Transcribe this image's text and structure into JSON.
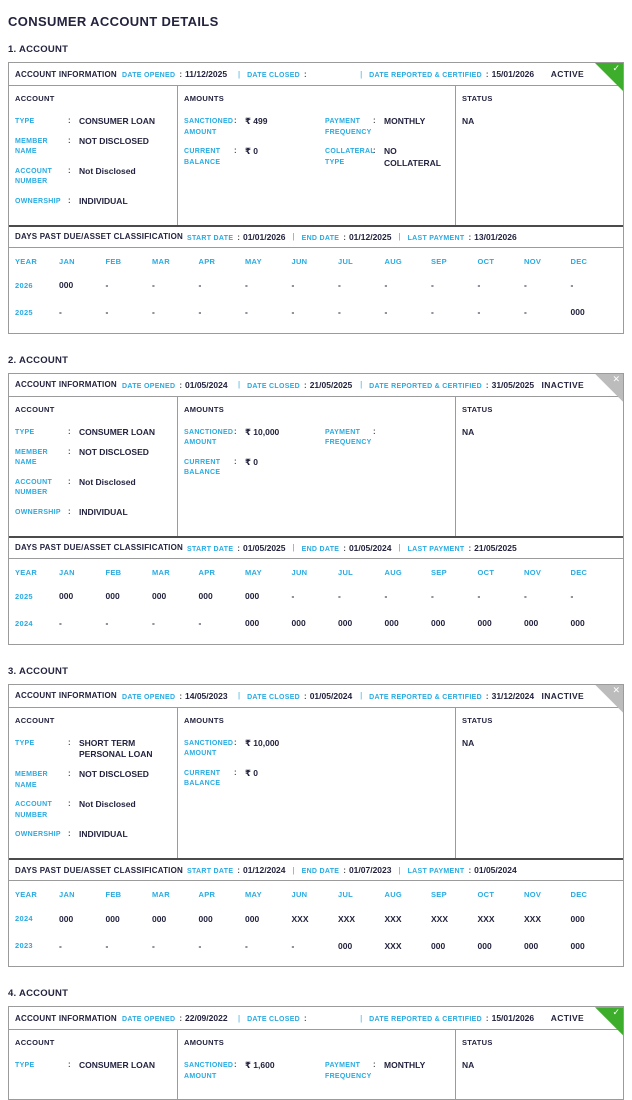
{
  "page": {
    "title": "CONSUMER ACCOUNT DETAILS"
  },
  "colors": {
    "accent_cyan": "#29ABE2",
    "ink_navy": "#23233F",
    "active_green": "#3DAE2B",
    "inactive_gray": "#BCBCBC",
    "border_gray": "#9B9B9B"
  },
  "labels": {
    "account_information": "ACCOUNT INFORMATION",
    "date_opened": "DATE OPENED",
    "date_closed": "DATE CLOSED",
    "date_reported": "DATE REPORTED & CERTIFIED",
    "account": "ACCOUNT",
    "amounts": "AMOUNTS",
    "status": "STATUS",
    "dpd_title": "DAYS PAST DUE/ASSET CLASSIFICATION",
    "start_date": "START DATE",
    "end_date": "END DATE",
    "last_payment": "LAST PAYMENT",
    "year": "YEAR",
    "months": [
      "JAN",
      "FEB",
      "MAR",
      "APR",
      "MAY",
      "JUN",
      "JUL",
      "AUG",
      "SEP",
      "OCT",
      "NOV",
      "DEC"
    ]
  },
  "accounts": [
    {
      "section_label": "1. ACCOUNT",
      "badge": {
        "label": "ACTIVE",
        "type": "active",
        "icon": "check"
      },
      "dates": {
        "opened": "11/12/2025",
        "closed": "",
        "reported": "15/01/2026"
      },
      "columns": {
        "account_rows": [
          {
            "label": "TYPE",
            "value": "CONSUMER LOAN"
          },
          {
            "label": "MEMBER NAME",
            "value": "NOT DISCLOSED"
          },
          {
            "label": "ACCOUNT NUMBER",
            "value": "Not Disclosed"
          },
          {
            "label": "OWNERSHIP",
            "value": "INDIVIDUAL"
          }
        ],
        "amounts_left": [
          {
            "label": "SANCTIONED AMOUNT",
            "value": "₹ 499"
          },
          {
            "label": "CURRENT BALANCE",
            "value": "₹ 0"
          }
        ],
        "amounts_right": [
          {
            "label": "PAYMENT FREQUENCY",
            "value": "MONTHLY"
          },
          {
            "label": "COLLATERAL TYPE",
            "value": "NO COLLATERAL"
          }
        ],
        "status_value": "NA"
      },
      "dpd": {
        "start_date": "01/01/2026",
        "end_date": "01/12/2025",
        "last_payment": "13/01/2026",
        "rows": [
          {
            "year": "2026",
            "values": [
              "000",
              "-",
              "-",
              "-",
              "-",
              "-",
              "-",
              "-",
              "-",
              "-",
              "-",
              "-"
            ]
          },
          {
            "year": "2025",
            "values": [
              "-",
              "-",
              "-",
              "-",
              "-",
              "-",
              "-",
              "-",
              "-",
              "-",
              "-",
              "000"
            ]
          }
        ]
      }
    },
    {
      "section_label": "2. ACCOUNT",
      "badge": {
        "label": "INACTIVE",
        "type": "inactive",
        "icon": "close"
      },
      "dates": {
        "opened": "01/05/2024",
        "closed": "21/05/2025",
        "reported": "31/05/2025"
      },
      "columns": {
        "account_rows": [
          {
            "label": "TYPE",
            "value": "CONSUMER LOAN"
          },
          {
            "label": "MEMBER NAME",
            "value": "NOT DISCLOSED"
          },
          {
            "label": "ACCOUNT NUMBER",
            "value": "Not Disclosed"
          },
          {
            "label": "OWNERSHIP",
            "value": "INDIVIDUAL"
          }
        ],
        "amounts_left": [
          {
            "label": "SANCTIONED AMOUNT",
            "value": "₹ 10,000"
          },
          {
            "label": "CURRENT BALANCE",
            "value": "₹ 0"
          }
        ],
        "amounts_right": [
          {
            "label": "PAYMENT FREQUENCY",
            "value": ""
          }
        ],
        "status_value": "NA"
      },
      "dpd": {
        "start_date": "01/05/2025",
        "end_date": "01/05/2024",
        "last_payment": "21/05/2025",
        "rows": [
          {
            "year": "2025",
            "values": [
              "000",
              "000",
              "000",
              "000",
              "000",
              "-",
              "-",
              "-",
              "-",
              "-",
              "-",
              "-"
            ]
          },
          {
            "year": "2024",
            "values": [
              "-",
              "-",
              "-",
              "-",
              "000",
              "000",
              "000",
              "000",
              "000",
              "000",
              "000",
              "000"
            ]
          }
        ]
      }
    },
    {
      "section_label": "3. ACCOUNT",
      "badge": {
        "label": "INACTIVE",
        "type": "inactive",
        "icon": "close"
      },
      "dates": {
        "opened": "14/05/2023",
        "closed": "01/05/2024",
        "reported": "31/12/2024"
      },
      "columns": {
        "account_rows": [
          {
            "label": "TYPE",
            "value": "SHORT TERM PERSONAL LOAN"
          },
          {
            "label": "MEMBER NAME",
            "value": "NOT DISCLOSED"
          },
          {
            "label": "ACCOUNT NUMBER",
            "value": "Not Disclosed"
          },
          {
            "label": "OWNERSHIP",
            "value": "INDIVIDUAL"
          }
        ],
        "amounts_left": [
          {
            "label": "SANCTIONED AMOUNT",
            "value": "₹ 10,000"
          },
          {
            "label": "CURRENT BALANCE",
            "value": "₹ 0"
          }
        ],
        "amounts_right": [],
        "status_value": "NA"
      },
      "dpd": {
        "start_date": "01/12/2024",
        "end_date": "01/07/2023",
        "last_payment": "01/05/2024",
        "rows": [
          {
            "year": "2024",
            "values": [
              "000",
              "000",
              "000",
              "000",
              "000",
              "XXX",
              "XXX",
              "XXX",
              "XXX",
              "XXX",
              "XXX",
              "000"
            ]
          },
          {
            "year": "2023",
            "values": [
              "-",
              "-",
              "-",
              "-",
              "-",
              "-",
              "000",
              "XXX",
              "000",
              "000",
              "000",
              "000"
            ]
          }
        ]
      }
    },
    {
      "section_label": "4. ACCOUNT",
      "badge": {
        "label": "ACTIVE",
        "type": "active",
        "icon": "check"
      },
      "dates": {
        "opened": "22/09/2022",
        "closed": "",
        "reported": "15/01/2026"
      },
      "columns": {
        "account_rows": [
          {
            "label": "TYPE",
            "value": "CONSUMER LOAN"
          }
        ],
        "amounts_left": [
          {
            "label": "SANCTIONED AMOUNT",
            "value": "₹ 1,600"
          }
        ],
        "amounts_right": [
          {
            "label": "PAYMENT FREQUENCY",
            "value": "MONTHLY"
          }
        ],
        "status_value": "NA"
      },
      "dpd": null
    }
  ]
}
